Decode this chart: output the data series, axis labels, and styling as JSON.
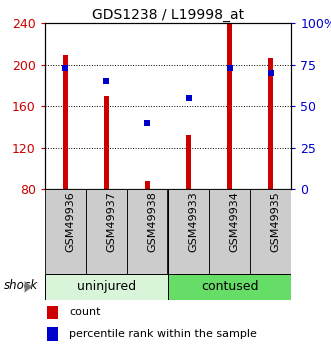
{
  "title": "GDS1238 / L19998_at",
  "categories": [
    "GSM49936",
    "GSM49937",
    "GSM49938",
    "GSM49933",
    "GSM49934",
    "GSM49935"
  ],
  "count_values": [
    210,
    170,
    88,
    132,
    241,
    207
  ],
  "percentile_values": [
    73,
    65,
    40,
    55,
    73,
    70
  ],
  "bar_color": "#cc0000",
  "dot_color": "#0000cc",
  "left_ylim": [
    80,
    240
  ],
  "right_ylim": [
    0,
    100
  ],
  "left_yticks": [
    80,
    120,
    160,
    200,
    240
  ],
  "right_yticks": [
    0,
    25,
    50,
    75,
    100
  ],
  "right_yticklabels": [
    "0",
    "25",
    "50",
    "75",
    "100%"
  ],
  "group_labels": [
    "uninjured",
    "contused"
  ],
  "group_colors_light": [
    "#d9f5d9",
    "#66dd66"
  ],
  "factor_label": "shock",
  "legend_count_label": "count",
  "legend_pct_label": "percentile rank within the sample",
  "bar_width": 0.12,
  "dot_size": 18,
  "tick_bg_color": "#cccccc",
  "title_fontsize": 10,
  "axis_fontsize": 9,
  "tick_fontsize": 8,
  "group_fontsize": 9,
  "legend_fontsize": 8
}
